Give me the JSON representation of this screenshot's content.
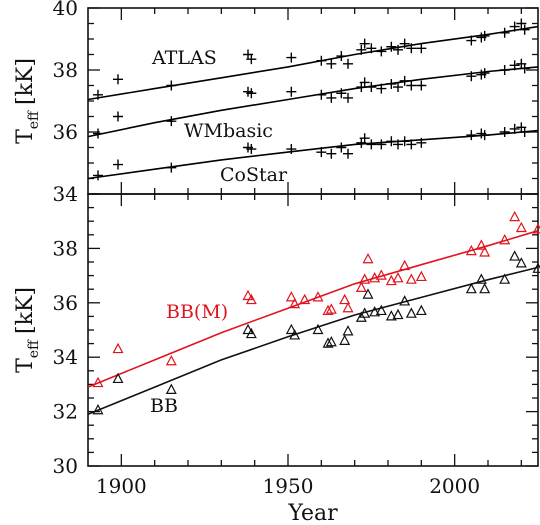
{
  "chart_data": [
    {
      "type": "scatter",
      "title": "",
      "xlabel": "Year",
      "ylabel": {
        "main": "T",
        "sub": "eff",
        "unit": "[kK]"
      },
      "xlim": [
        1890,
        2025
      ],
      "ylim": [
        34,
        40
      ],
      "yticks": [
        "34",
        "36",
        "38",
        "40"
      ],
      "grid": false,
      "series": [
        {
          "name": "ATLAS",
          "marker": "plus",
          "color": "#000000",
          "fit": [
            [
              1890,
              37.05
            ],
            [
              1910,
              37.4
            ],
            [
              1930,
              37.75
            ],
            [
              1950,
              38.1
            ],
            [
              1970,
              38.5
            ],
            [
              1990,
              38.85
            ],
            [
              2010,
              39.15
            ],
            [
              2025,
              39.4
            ]
          ],
          "points": [
            [
              1893,
              37.2
            ],
            [
              1899,
              37.7
            ],
            [
              1915,
              37.5
            ],
            [
              1938,
              38.5
            ],
            [
              1939,
              38.35
            ],
            [
              1951,
              38.4
            ],
            [
              1960,
              38.3
            ],
            [
              1963,
              38.2
            ],
            [
              1966,
              38.45
            ],
            [
              1968,
              38.2
            ],
            [
              1972,
              38.65
            ],
            [
              1973,
              38.85
            ],
            [
              1975,
              38.7
            ],
            [
              1978,
              38.6
            ],
            [
              1981,
              38.75
            ],
            [
              1983,
              38.65
            ],
            [
              1985,
              38.85
            ],
            [
              1987,
              38.7
            ],
            [
              1990,
              38.7
            ],
            [
              2005,
              38.95
            ],
            [
              2008,
              39.05
            ],
            [
              2009,
              39.1
            ],
            [
              2015,
              39.2
            ],
            [
              2018,
              39.4
            ],
            [
              2020,
              39.5
            ],
            [
              2021,
              39.3
            ]
          ]
        },
        {
          "name": "WMbasic",
          "marker": "plus",
          "color": "#000000",
          "fit": [
            [
              1890,
              35.85
            ],
            [
              1910,
              36.3
            ],
            [
              1930,
              36.7
            ],
            [
              1950,
              37.05
            ],
            [
              1970,
              37.4
            ],
            [
              1990,
              37.7
            ],
            [
              2010,
              37.95
            ],
            [
              2025,
              38.1
            ]
          ],
          "points": [
            [
              1893,
              35.95
            ],
            [
              1899,
              36.5
            ],
            [
              1915,
              36.35
            ],
            [
              1938,
              37.3
            ],
            [
              1939,
              37.25
            ],
            [
              1951,
              37.3
            ],
            [
              1960,
              37.2
            ],
            [
              1963,
              37.1
            ],
            [
              1966,
              37.25
            ],
            [
              1968,
              37.1
            ],
            [
              1972,
              37.45
            ],
            [
              1973,
              37.6
            ],
            [
              1975,
              37.45
            ],
            [
              1978,
              37.4
            ],
            [
              1981,
              37.55
            ],
            [
              1983,
              37.45
            ],
            [
              1985,
              37.65
            ],
            [
              1987,
              37.5
            ],
            [
              1990,
              37.5
            ],
            [
              2005,
              37.8
            ],
            [
              2008,
              37.85
            ],
            [
              2009,
              37.9
            ],
            [
              2015,
              38.0
            ],
            [
              2018,
              38.15
            ],
            [
              2020,
              38.2
            ],
            [
              2021,
              38.05
            ]
          ]
        },
        {
          "name": "CoStar",
          "marker": "plus",
          "color": "#000000",
          "fit": [
            [
              1890,
              34.5
            ],
            [
              1910,
              34.8
            ],
            [
              1930,
              35.1
            ],
            [
              1950,
              35.35
            ],
            [
              1970,
              35.6
            ],
            [
              1990,
              35.75
            ],
            [
              2010,
              35.9
            ],
            [
              2025,
              36.05
            ]
          ],
          "points": [
            [
              1893,
              34.6
            ],
            [
              1899,
              34.95
            ],
            [
              1915,
              34.85
            ],
            [
              1938,
              35.5
            ],
            [
              1939,
              35.45
            ],
            [
              1951,
              35.45
            ],
            [
              1960,
              35.35
            ],
            [
              1963,
              35.3
            ],
            [
              1966,
              35.5
            ],
            [
              1968,
              35.3
            ],
            [
              1972,
              35.65
            ],
            [
              1973,
              35.8
            ],
            [
              1975,
              35.6
            ],
            [
              1978,
              35.6
            ],
            [
              1981,
              35.7
            ],
            [
              1983,
              35.6
            ],
            [
              1985,
              35.7
            ],
            [
              1987,
              35.6
            ],
            [
              1990,
              35.65
            ],
            [
              2005,
              35.9
            ],
            [
              2008,
              35.95
            ],
            [
              2009,
              35.9
            ],
            [
              2015,
              36.0
            ],
            [
              2018,
              36.1
            ],
            [
              2020,
              36.15
            ],
            [
              2021,
              36.0
            ]
          ]
        }
      ]
    },
    {
      "type": "scatter",
      "title": "",
      "xlabel": "Year",
      "ylabel": {
        "main": "T",
        "sub": "eff",
        "unit": "[kK]"
      },
      "xlim": [
        1890,
        2025
      ],
      "ylim": [
        30,
        40
      ],
      "xticks": [
        "1900",
        "1950",
        "2000"
      ],
      "yticks": [
        "30",
        "32",
        "34",
        "36",
        "38"
      ],
      "grid": false,
      "series": [
        {
          "name": "BB(M)",
          "marker": "triangle",
          "color": "#e0141e",
          "fit": [
            [
              1890,
              32.9
            ],
            [
              1910,
              33.9
            ],
            [
              1930,
              34.9
            ],
            [
              1950,
              35.8
            ],
            [
              1970,
              36.7
            ],
            [
              1990,
              37.4
            ],
            [
              2010,
              38.1
            ],
            [
              2025,
              38.65
            ]
          ],
          "points": [
            [
              1893,
              33.05
            ],
            [
              1899,
              34.3
            ],
            [
              1915,
              33.85
            ],
            [
              1938,
              36.25
            ],
            [
              1939,
              36.1
            ],
            [
              1951,
              36.2
            ],
            [
              1952,
              35.95
            ],
            [
              1955,
              36.1
            ],
            [
              1959,
              36.2
            ],
            [
              1962,
              35.7
            ],
            [
              1963,
              35.75
            ],
            [
              1967,
              36.1
            ],
            [
              1968,
              35.8
            ],
            [
              1972,
              36.55
            ],
            [
              1973,
              36.85
            ],
            [
              1974,
              37.6
            ],
            [
              1976,
              36.9
            ],
            [
              1978,
              37.0
            ],
            [
              1981,
              36.8
            ],
            [
              1983,
              36.9
            ],
            [
              1985,
              37.35
            ],
            [
              1987,
              36.85
            ],
            [
              1990,
              36.95
            ],
            [
              2005,
              37.9
            ],
            [
              2008,
              38.1
            ],
            [
              2009,
              37.85
            ],
            [
              2015,
              38.3
            ],
            [
              2018,
              39.15
            ],
            [
              2020,
              38.75
            ],
            [
              2025,
              38.7
            ]
          ]
        },
        {
          "name": "BB",
          "marker": "triangle",
          "color": "#111111",
          "fit": [
            [
              1890,
              31.9
            ],
            [
              1910,
              32.9
            ],
            [
              1930,
              33.9
            ],
            [
              1950,
              34.75
            ],
            [
              1970,
              35.55
            ],
            [
              1990,
              36.2
            ],
            [
              2010,
              36.85
            ],
            [
              2025,
              37.3
            ]
          ],
          "points": [
            [
              1893,
              32.05
            ],
            [
              1899,
              33.2
            ],
            [
              1915,
              32.8
            ],
            [
              1938,
              35.0
            ],
            [
              1939,
              34.85
            ],
            [
              1951,
              35.0
            ],
            [
              1952,
              34.8
            ],
            [
              1959,
              35.0
            ],
            [
              1962,
              34.5
            ],
            [
              1963,
              34.55
            ],
            [
              1967,
              34.6
            ],
            [
              1968,
              34.95
            ],
            [
              1972,
              35.45
            ],
            [
              1973,
              35.6
            ],
            [
              1974,
              36.3
            ],
            [
              1976,
              35.65
            ],
            [
              1978,
              35.7
            ],
            [
              1981,
              35.5
            ],
            [
              1983,
              35.55
            ],
            [
              1985,
              36.05
            ],
            [
              1987,
              35.6
            ],
            [
              1990,
              35.7
            ],
            [
              2005,
              36.5
            ],
            [
              2008,
              36.85
            ],
            [
              2009,
              36.5
            ],
            [
              2015,
              36.85
            ],
            [
              2018,
              37.7
            ],
            [
              2020,
              37.45
            ],
            [
              2025,
              37.25
            ]
          ]
        }
      ]
    }
  ]
}
